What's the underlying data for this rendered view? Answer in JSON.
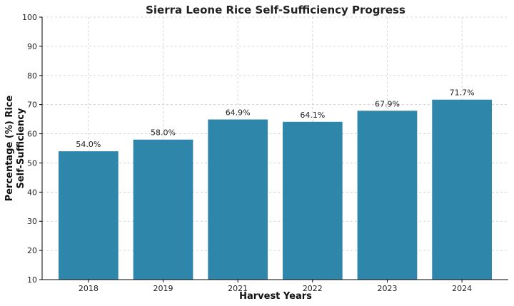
{
  "chart_data": {
    "type": "bar",
    "title": "Sierra Leone Rice Self-Sufficiency Progress",
    "xlabel": "Harvest Years",
    "ylabel_lines": [
      "Percentage (%) Rice",
      "Self-Sufficiency"
    ],
    "categories": [
      "2018",
      "2019",
      "2021",
      "2022",
      "2023",
      "2024"
    ],
    "values": [
      54.0,
      58.0,
      64.9,
      64.1,
      67.9,
      71.7
    ],
    "data_labels": [
      "54.0%",
      "58.0%",
      "64.9%",
      "64.1%",
      "67.9%",
      "71.7%"
    ],
    "ylim": [
      10,
      100
    ],
    "yticks": [
      10,
      20,
      30,
      40,
      50,
      60,
      70,
      80,
      90,
      100
    ],
    "grid": true,
    "colors": {
      "bar": "#2e86ab"
    }
  }
}
